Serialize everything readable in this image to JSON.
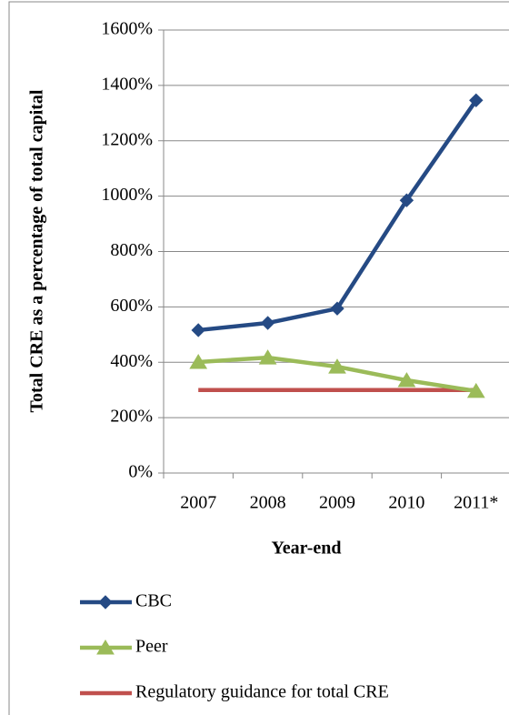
{
  "chart_data": {
    "type": "line",
    "y_label": "Total CRE as a percentage of total capital",
    "x_label": "Year-end",
    "categories": [
      "2007",
      "2008",
      "2009",
      "2010",
      "2011*"
    ],
    "series": [
      {
        "name": "CBC",
        "color": "#254a84",
        "marker": "diamond",
        "values": [
          516,
          542,
          594,
          985,
          1346
        ]
      },
      {
        "name": "Peer",
        "color": "#9bbb59",
        "marker": "triangle",
        "values": [
          401,
          417,
          384,
          335,
          296
        ]
      },
      {
        "name": "Regulatory guidance for total CRE",
        "color": "#c0504d",
        "marker": "none",
        "values": [
          300,
          300,
          300,
          300,
          300
        ]
      }
    ],
    "ylim": [
      0,
      1600
    ],
    "yticks": [
      {
        "value": 0,
        "label": "0%"
      },
      {
        "value": 200,
        "label": "200%"
      },
      {
        "value": 400,
        "label": "400%"
      },
      {
        "value": 600,
        "label": "600%"
      },
      {
        "value": 800,
        "label": "800%"
      },
      {
        "value": 1000,
        "label": "1000%"
      },
      {
        "value": 1200,
        "label": "1200%"
      },
      {
        "value": 1400,
        "label": "1400%"
      },
      {
        "value": 1600,
        "label": "1600%"
      }
    ],
    "grid": true,
    "legend": "bottom-left"
  }
}
